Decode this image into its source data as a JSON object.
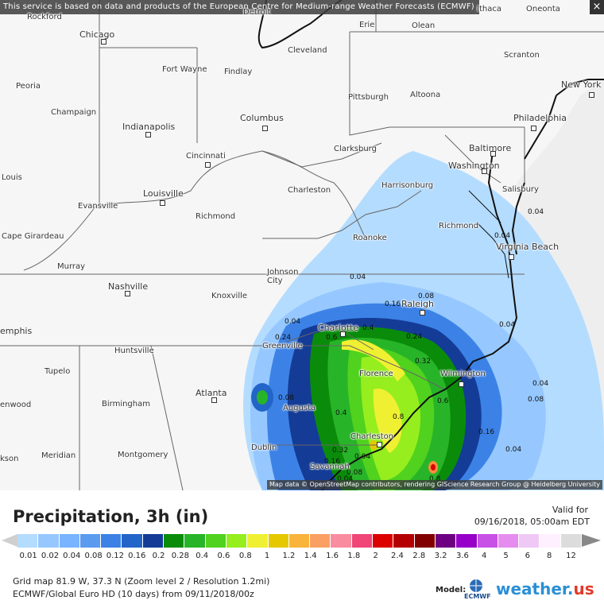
{
  "notice": "This service is based on data and products of the European Centre for Medium-range Weather Forecasts (ECMWF)",
  "close_icon": "×",
  "attribution": "Map data © OpenStreetMap contributors, rendering GIScience Research Group @ Heidelberg University",
  "cities": {
    "rockford": "Rockford",
    "detroit": "Detroit",
    "erie": "Erie",
    "ithaca": "Ithaca",
    "oneonta": "Oneonta",
    "chicago": "Chicago",
    "olean": "Olean",
    "cleveland": "Cleveland",
    "scranton": "Scranton",
    "fort_wayne": "Fort Wayne",
    "findlay": "Findlay",
    "new_york": "New York",
    "peoria": "Peoria",
    "pittsburgh": "Pittsburgh",
    "altoona": "Altoona",
    "champaign": "Champaign",
    "columbus": "Columbus",
    "philadelphia": "Philadelphia",
    "indianapolis": "Indianapolis",
    "clarksburg": "Clarksburg",
    "baltimore": "Baltimore",
    "cincinnati": "Cincinnati",
    "washington": "Washington",
    "louis": "Louis",
    "harrisonburg": "Harrisonburg",
    "charleston_wv": "Charleston",
    "salisbury": "Salisbury",
    "louisville": "Louisville",
    "evansville": "Evansville",
    "richmond_ky": "Richmond",
    "richmond_va": "Richmond",
    "cape_girardeau": "Cape Girardeau",
    "roanoke": "Roanoke",
    "virginia_beach": "Virginia Beach",
    "murray": "Murray",
    "johnson_city": "Johnson City",
    "nashville": "Nashville",
    "knoxville": "Knoxville",
    "raleigh": "Raleigh",
    "memphis": "emphis",
    "charlotte": "Charlotte",
    "greenville": "Greenville",
    "huntsville": "Huntsville",
    "florence": "Florence",
    "wilmington": "Wilmington",
    "tupelo": "Tupelo",
    "atlanta": "Atlanta",
    "augusta": "Augusta",
    "birmingham": "Birmingham",
    "enwood": "enwood",
    "charleston_sc": "Charleston",
    "dublin": "Dublin",
    "meridian": "Meridian",
    "montgomery": "Montgomery",
    "savannah": "Savannah",
    "ackson": "kson"
  },
  "contour_values": [
    "0.04",
    "0.04",
    "0.04",
    "0.04",
    "0.04",
    "0.08",
    "0.08",
    "0.16",
    "0.24",
    "0.32",
    "0.4",
    "0.4",
    "0.6",
    "0.6",
    "0.8",
    "0.8",
    "0.04",
    "0.08",
    "0.16",
    "0.04",
    "0.32",
    "0.24",
    "0.16",
    "0.08",
    "0.04",
    "0.04"
  ],
  "legend": {
    "title": "Precipitation, 3h (in)",
    "valid_label": "Valid for",
    "valid_time": "09/16/2018, 05:00am EDT",
    "colors": [
      "#b4dcff",
      "#96c8ff",
      "#78b4ff",
      "#5a9bf0",
      "#3c82e6",
      "#2364c8",
      "#143c96",
      "#0a8c0a",
      "#28b428",
      "#50d21e",
      "#96ee1e",
      "#f0f032",
      "#e6c800",
      "#fab43c",
      "#faa064",
      "#fa8ca0",
      "#f04678",
      "#dc0000",
      "#b40000",
      "#820000",
      "#6e0082",
      "#9600c8",
      "#c850e6",
      "#e68cf0",
      "#f0c8f5",
      "#fff0ff",
      "#dcdcdc"
    ],
    "ticks": [
      "0.01",
      "0.02",
      "0.04",
      "0.08",
      "0.12",
      "0.16",
      "0.2",
      "0.28",
      "0.4",
      "0.6",
      "0.8",
      "1",
      "1.2",
      "1.4",
      "1.6",
      "1.8",
      "2",
      "2.4",
      "2.8",
      "3.2",
      "3.6",
      "4",
      "5",
      "6",
      "8",
      "12"
    ]
  },
  "info": {
    "grid": "Grid map 81.9 W, 37.3 N (Zoom level 2 / Resolution 1.2mi)",
    "model_run": "ECMWF/Global Euro HD (10 days) from 09/11/2018/00z",
    "model_label": "Model:",
    "ecmwf_logo_text": "ECMWF",
    "brand": "weather.",
    "brand_tld": "us"
  }
}
